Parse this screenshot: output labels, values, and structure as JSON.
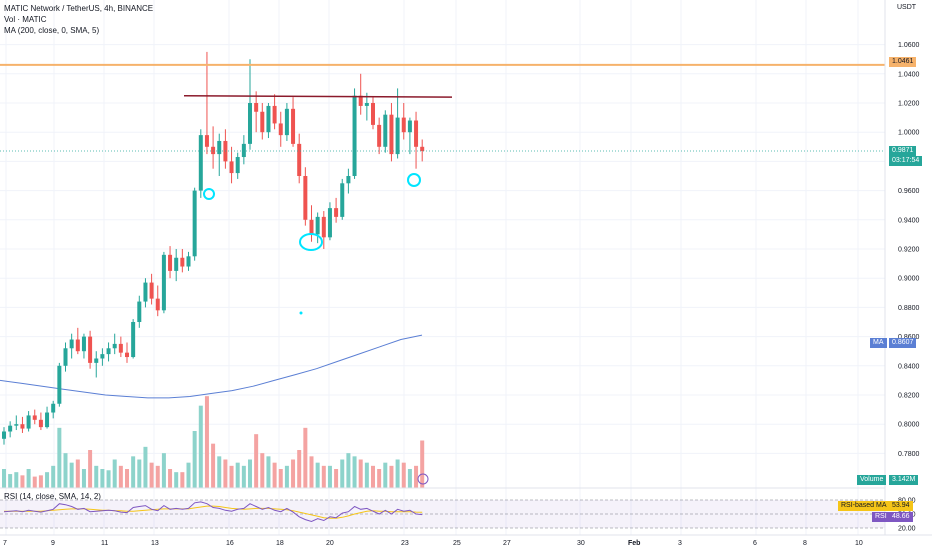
{
  "legend": {
    "title": "MATIC Network / TetherUS, 4h, BINANCE",
    "vol": "Vol · MATIC",
    "ma": "MA (200, close, 0, SMA, 5)",
    "rsi": "RSI (14, close, SMA, 14, 2)"
  },
  "price_axis": {
    "unit": "USDT",
    "ticks": [
      "1.0600",
      "1.0400",
      "1.0200",
      "1.0000",
      "0.9800",
      "0.9600",
      "0.9400",
      "0.9200",
      "0.9000",
      "0.8800",
      "0.8600",
      "0.8400",
      "0.8200",
      "0.8000",
      "0.7800"
    ]
  },
  "tags": {
    "resistance": "1.0461",
    "last_price": "0.9871",
    "countdown": "03:17:54",
    "ma_label": "MA",
    "ma_value": "0.8607",
    "volume_label": "Volume",
    "volume_value": "3.142M",
    "rsi_based_ma_label": "RSI-based MA",
    "rsi_based_ma_value": "53.94",
    "rsi_label": "RSI",
    "rsi_value": "48.66"
  },
  "rsi_axis": {
    "ticks": [
      "80.00",
      "50.00",
      "20.00"
    ]
  },
  "time_axis": {
    "ticks": [
      "7",
      "9",
      "11",
      "13",
      "16",
      "18",
      "20",
      "23",
      "25",
      "27",
      "30",
      "Feb",
      "3",
      "6",
      "8",
      "10"
    ]
  },
  "colors": {
    "up": "#26a69a",
    "down": "#ef5350",
    "up_vol": "#8dd3cb",
    "down_vol": "#f4a3a2",
    "ma_line": "#5b7fd4",
    "resistance": "#f6b26b",
    "trendline": "#8b1a2b",
    "annotation": "#00e5ff",
    "rsi_line": "#7e57c2",
    "rsi_ma": "#f5c518"
  },
  "chart_data": {
    "type": "candlestick",
    "symbol": "MATIC Network / TetherUS",
    "interval": "4h",
    "exchange": "BINANCE",
    "y_range": [
      0.77,
      1.07
    ],
    "horizontal_lines": [
      1.0461,
      0.9871
    ],
    "moving_average": {
      "current": 0.8607,
      "series": [
        0.83,
        0.828,
        0.826,
        0.824,
        0.822,
        0.82,
        0.819,
        0.818,
        0.818,
        0.819,
        0.821,
        0.823,
        0.826,
        0.83,
        0.834,
        0.838,
        0.843,
        0.848,
        0.853,
        0.858,
        0.861
      ]
    },
    "candles": [
      [
        0.79,
        0.798,
        0.786,
        0.795
      ],
      [
        0.795,
        0.802,
        0.791,
        0.799
      ],
      [
        0.799,
        0.806,
        0.796,
        0.8
      ],
      [
        0.8,
        0.805,
        0.794,
        0.797
      ],
      [
        0.797,
        0.809,
        0.795,
        0.806
      ],
      [
        0.806,
        0.81,
        0.8,
        0.803
      ],
      [
        0.803,
        0.808,
        0.796,
        0.798
      ],
      [
        0.798,
        0.812,
        0.797,
        0.808
      ],
      [
        0.808,
        0.816,
        0.804,
        0.814
      ],
      [
        0.814,
        0.842,
        0.812,
        0.84
      ],
      [
        0.84,
        0.856,
        0.836,
        0.852
      ],
      [
        0.852,
        0.862,
        0.845,
        0.858
      ],
      [
        0.858,
        0.866,
        0.848,
        0.85
      ],
      [
        0.85,
        0.862,
        0.845,
        0.86
      ],
      [
        0.86,
        0.864,
        0.838,
        0.842
      ],
      [
        0.842,
        0.85,
        0.832,
        0.845
      ],
      [
        0.845,
        0.852,
        0.84,
        0.848
      ],
      [
        0.848,
        0.856,
        0.843,
        0.852
      ],
      [
        0.852,
        0.862,
        0.848,
        0.855
      ],
      [
        0.855,
        0.86,
        0.846,
        0.849
      ],
      [
        0.849,
        0.856,
        0.842,
        0.846
      ],
      [
        0.846,
        0.872,
        0.845,
        0.87
      ],
      [
        0.87,
        0.888,
        0.866,
        0.884
      ],
      [
        0.884,
        0.9,
        0.88,
        0.897
      ],
      [
        0.897,
        0.903,
        0.882,
        0.886
      ],
      [
        0.886,
        0.895,
        0.874,
        0.878
      ],
      [
        0.878,
        0.918,
        0.876,
        0.916
      ],
      [
        0.916,
        0.922,
        0.9,
        0.905
      ],
      [
        0.905,
        0.92,
        0.898,
        0.914
      ],
      [
        0.914,
        0.92,
        0.904,
        0.908
      ],
      [
        0.908,
        0.918,
        0.905,
        0.915
      ],
      [
        0.915,
        0.962,
        0.912,
        0.96
      ],
      [
        0.96,
        1.002,
        0.955,
        0.998
      ],
      [
        0.998,
        1.055,
        0.985,
        0.99
      ],
      [
        0.99,
        1.004,
        0.975,
        0.985
      ],
      [
        0.985,
        0.999,
        0.97,
        0.994
      ],
      [
        0.994,
        1.002,
        0.975,
        0.98
      ],
      [
        0.98,
        0.99,
        0.965,
        0.972
      ],
      [
        0.972,
        0.986,
        0.968,
        0.983
      ],
      [
        0.983,
        0.998,
        0.978,
        0.992
      ],
      [
        0.992,
        1.05,
        0.988,
        1.02
      ],
      [
        1.02,
        1.028,
        1.0,
        1.014
      ],
      [
        1.014,
        1.02,
        0.995,
        1.0
      ],
      [
        1.0,
        1.02,
        0.996,
        1.018
      ],
      [
        1.018,
        1.026,
        1.002,
        1.006
      ],
      [
        1.006,
        1.014,
        0.99,
        0.998
      ],
      [
        0.998,
        1.02,
        0.994,
        1.016
      ],
      [
        1.016,
        1.024,
        0.99,
        0.992
      ],
      [
        0.992,
        0.999,
        0.965,
        0.97
      ],
      [
        0.97,
        0.976,
        0.936,
        0.94
      ],
      [
        0.94,
        0.95,
        0.925,
        0.93
      ],
      [
        0.93,
        0.945,
        0.924,
        0.942
      ],
      [
        0.942,
        0.946,
        0.92,
        0.928
      ],
      [
        0.928,
        0.952,
        0.926,
        0.948
      ],
      [
        0.948,
        0.955,
        0.938,
        0.942
      ],
      [
        0.942,
        0.968,
        0.94,
        0.965
      ],
      [
        0.965,
        0.975,
        0.958,
        0.97
      ],
      [
        0.97,
        1.03,
        0.968,
        1.025
      ],
      [
        1.025,
        1.04,
        1.012,
        1.018
      ],
      [
        1.018,
        1.027,
        1.008,
        1.02
      ],
      [
        1.02,
        1.024,
        1.002,
        1.005
      ],
      [
        1.005,
        1.01,
        0.985,
        0.99
      ],
      [
        0.99,
        1.015,
        0.986,
        1.012
      ],
      [
        1.012,
        1.02,
        0.98,
        0.985
      ],
      [
        0.985,
        1.03,
        0.982,
        1.01
      ],
      [
        1.01,
        1.02,
        0.995,
        1.0
      ],
      [
        1.0,
        1.01,
        0.985,
        1.008
      ],
      [
        1.008,
        1.014,
        0.975,
        0.99
      ],
      [
        0.99,
        0.995,
        0.98,
        0.9871
      ]
    ],
    "volume": [
      0.3,
      0.22,
      0.25,
      0.2,
      0.3,
      0.18,
      0.2,
      0.25,
      0.35,
      0.95,
      0.55,
      0.4,
      0.45,
      0.3,
      0.6,
      0.35,
      0.3,
      0.28,
      0.45,
      0.35,
      0.3,
      0.5,
      0.45,
      0.65,
      0.4,
      0.35,
      0.55,
      0.3,
      0.25,
      0.25,
      0.4,
      0.9,
      1.3,
      1.45,
      0.7,
      0.5,
      0.45,
      0.35,
      0.4,
      0.35,
      0.45,
      0.85,
      0.55,
      0.5,
      0.4,
      0.3,
      0.35,
      0.45,
      0.6,
      0.95,
      0.5,
      0.4,
      0.35,
      0.35,
      0.3,
      0.45,
      0.55,
      0.5,
      0.45,
      0.4,
      0.35,
      0.3,
      0.4,
      0.35,
      0.45,
      0.4,
      0.3,
      0.35,
      0.75
    ],
    "rsi": [
      55,
      56,
      57,
      55,
      58,
      56,
      54,
      57,
      60,
      72,
      70,
      66,
      60,
      62,
      55,
      56,
      57,
      58,
      57,
      54,
      53,
      64,
      66,
      68,
      60,
      57,
      68,
      60,
      62,
      60,
      62,
      74,
      76,
      72,
      64,
      62,
      58,
      56,
      60,
      62,
      72,
      66,
      60,
      64,
      58,
      55,
      62,
      54,
      44,
      38,
      34,
      40,
      36,
      44,
      42,
      52,
      55,
      66,
      60,
      62,
      56,
      50,
      58,
      50,
      60,
      56,
      58,
      50,
      48.66
    ],
    "rsi_ma": [
      56,
      56,
      56,
      56,
      56,
      56,
      56,
      57,
      58,
      59,
      60,
      61,
      61,
      61,
      60,
      59,
      58,
      58,
      57,
      57,
      56,
      56,
      57,
      58,
      59,
      60,
      61,
      61,
      61,
      61,
      61,
      63,
      65,
      67,
      67,
      66,
      64,
      62,
      61,
      60,
      61,
      62,
      62,
      62,
      61,
      60,
      59,
      57,
      54,
      51,
      48,
      45,
      42,
      41,
      41,
      43,
      46,
      50,
      53,
      56,
      57,
      56,
      56,
      55,
      55,
      55,
      55,
      54,
      53.94
    ],
    "annotations": [
      "circle at low ~0.964",
      "circle at low ~0.926",
      "circle at low ~0.978"
    ]
  }
}
